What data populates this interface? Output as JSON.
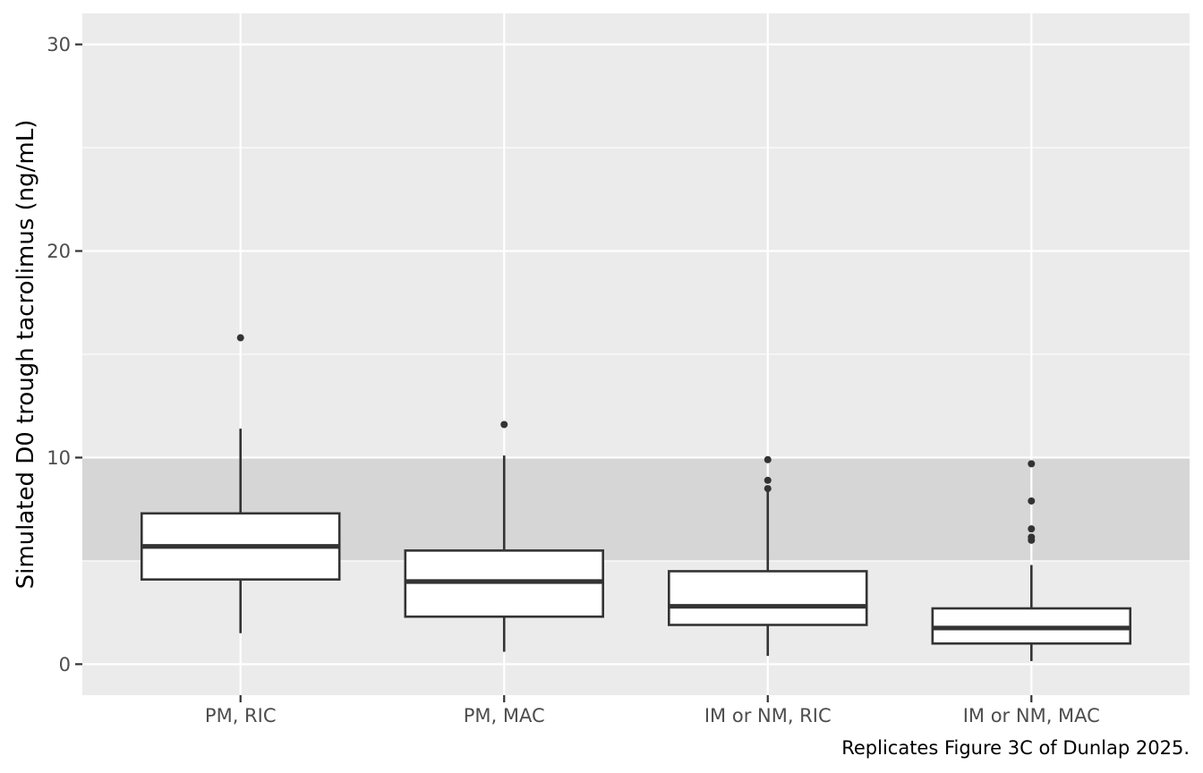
{
  "chart_data": {
    "type": "boxplot",
    "ylabel": "Simulated D0 trough tacrolimus (ng/mL)",
    "xlabel": "",
    "caption": "Replicates Figure 3C of Dunlap 2025.",
    "ylim": [
      -1.5,
      31.5
    ],
    "y_ticks": [
      0,
      10,
      20,
      30
    ],
    "y_tick_labels": [
      "0",
      "10",
      "20",
      "30"
    ],
    "y_minor_ticks": [
      5,
      15,
      25
    ],
    "grid": true,
    "target_range": [
      5,
      10
    ],
    "categories": [
      "PM, RIC",
      "PM, MAC",
      "IM or NM, RIC",
      "IM or NM, MAC"
    ],
    "boxes": [
      {
        "category": "PM, RIC",
        "whisker_low": 1.5,
        "q1": 4.1,
        "median": 5.7,
        "q3": 7.3,
        "whisker_high": 11.4,
        "outliers": [
          15.8
        ]
      },
      {
        "category": "PM, MAC",
        "whisker_low": 0.6,
        "q1": 2.3,
        "median": 4.0,
        "q3": 5.5,
        "whisker_high": 10.1,
        "outliers": [
          11.6
        ]
      },
      {
        "category": "IM or NM, RIC",
        "whisker_low": 0.4,
        "q1": 1.9,
        "median": 2.8,
        "q3": 4.5,
        "whisker_high": 8.4,
        "outliers": [
          8.5,
          8.9,
          9.9
        ]
      },
      {
        "category": "IM or NM, MAC",
        "whisker_low": 0.15,
        "q1": 1.0,
        "median": 1.75,
        "q3": 2.7,
        "whisker_high": 4.8,
        "outliers": [
          6.0,
          6.15,
          6.55,
          7.9,
          9.7
        ]
      }
    ],
    "colors": {
      "panel_background": "#EBEBEB",
      "grid": "#FFFFFF",
      "target_band": "#D6D6D6",
      "box_fill": "#FFFFFF",
      "box_line": "#333333",
      "outlier": "#333333"
    }
  }
}
